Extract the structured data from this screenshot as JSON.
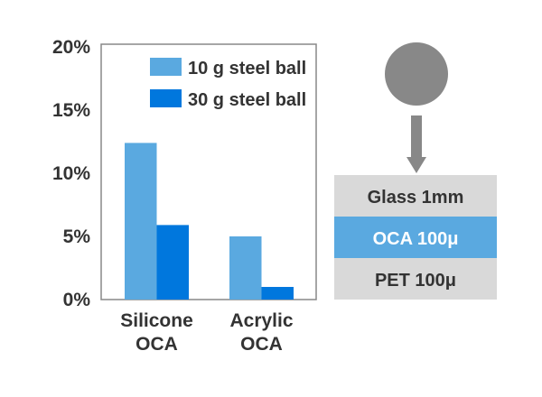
{
  "chart_data": {
    "type": "bar",
    "categories": [
      [
        "Silicone",
        "OCA"
      ],
      [
        "Acrylic",
        "OCA"
      ]
    ],
    "series": [
      {
        "name": "10 g steel ball",
        "color": "#5aa9e0",
        "values": [
          12.4,
          5.0
        ]
      },
      {
        "name": "30 g steel ball",
        "color": "#0077dd",
        "values": [
          5.9,
          1.0
        ]
      }
    ],
    "ylim": [
      0,
      20
    ],
    "yticks": [
      "0%",
      "5%",
      "10%",
      "15%",
      "20%"
    ],
    "ytick_values": [
      0,
      5,
      10,
      15,
      20
    ],
    "legend": "top-right",
    "grid": false
  },
  "diagram": {
    "ball_color": "#888888",
    "layers": [
      {
        "label": "Glass 1mm",
        "color": "#d9d9d9",
        "text_color": "#333333"
      },
      {
        "label": "OCA 100μ",
        "color": "#5aa9e0",
        "text_color": "#ffffff"
      },
      {
        "label": "PET 100μ",
        "color": "#d9d9d9",
        "text_color": "#333333"
      }
    ]
  }
}
